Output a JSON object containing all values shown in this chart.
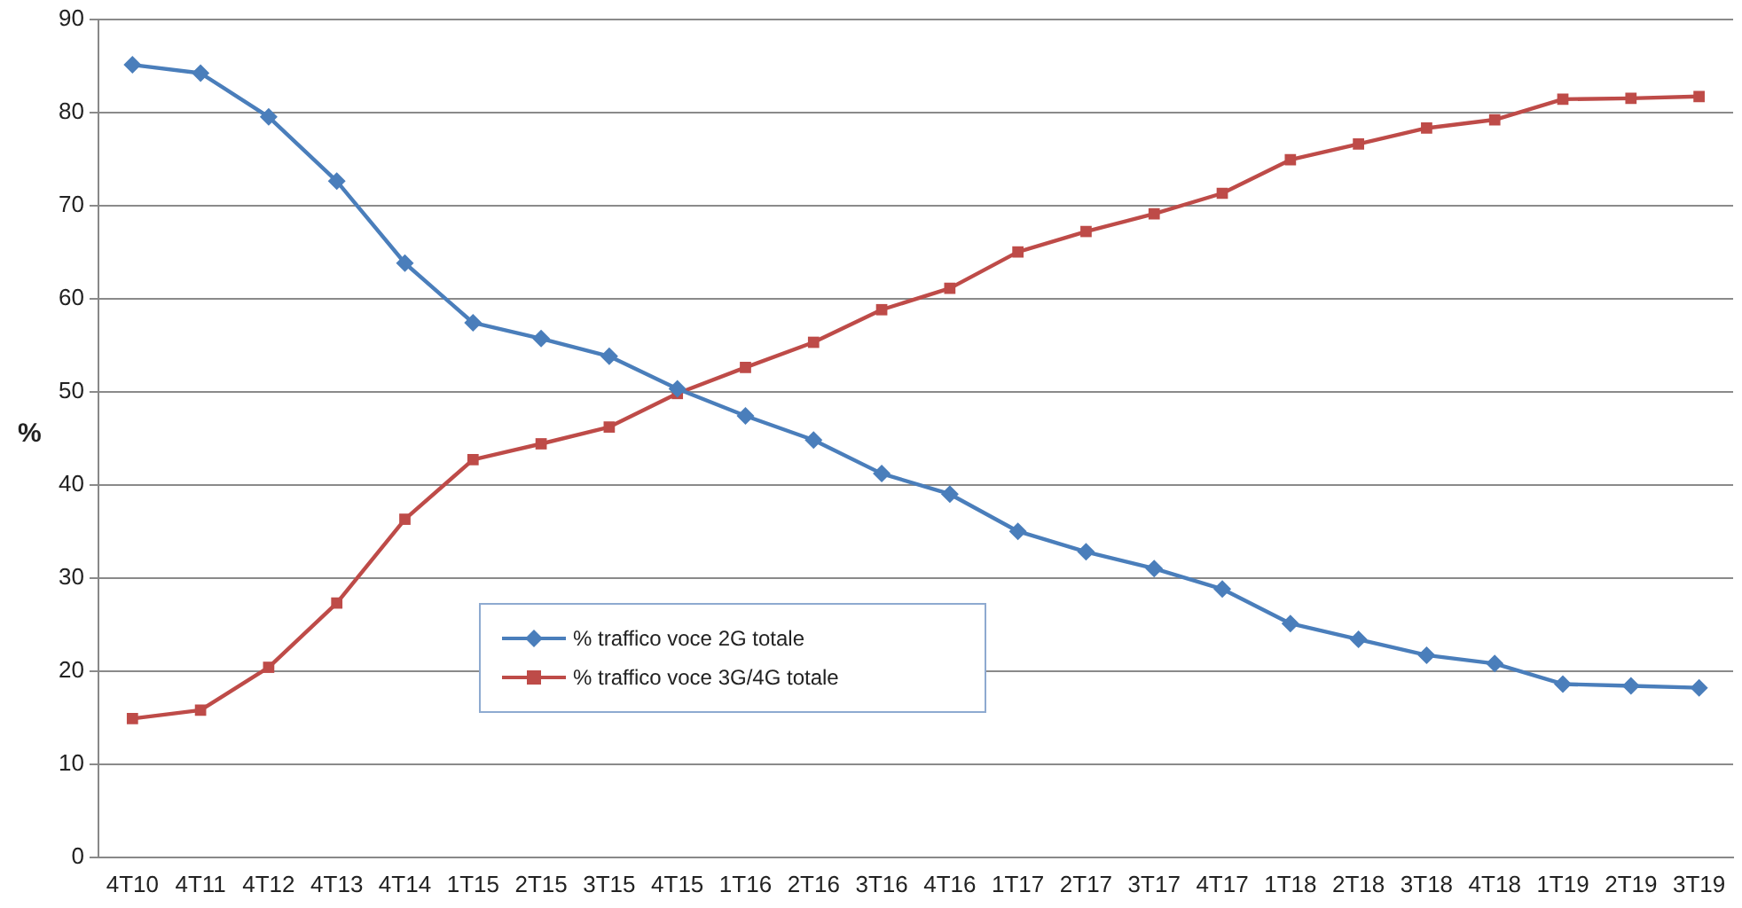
{
  "chart_data": {
    "type": "line",
    "ylabel": "%",
    "categories": [
      "4T10",
      "4T11",
      "4T12",
      "4T13",
      "4T14",
      "1T15",
      "2T15",
      "3T15",
      "4T15",
      "1T16",
      "2T16",
      "3T16",
      "4T16",
      "1T17",
      "2T17",
      "3T17",
      "4T17",
      "1T18",
      "2T18",
      "3T18",
      "4T18",
      "1T19",
      "2T19",
      "3T19"
    ],
    "series": [
      {
        "name": "% traffico voce 2G totale",
        "color": "#4a7ebb",
        "marker": "diamond",
        "values": [
          85.1,
          84.2,
          79.5,
          72.6,
          63.8,
          57.4,
          55.7,
          53.8,
          50.3,
          47.4,
          44.8,
          41.2,
          39.0,
          35.0,
          32.8,
          31.0,
          28.8,
          25.1,
          23.4,
          21.7,
          20.8,
          18.6,
          18.4,
          18.2
        ]
      },
      {
        "name": "% traffico voce 3G/4G totale",
        "color": "#be4b48",
        "marker": "square",
        "values": [
          14.9,
          15.8,
          20.4,
          27.3,
          36.3,
          42.7,
          44.4,
          46.2,
          49.8,
          52.6,
          55.3,
          58.8,
          61.1,
          65.0,
          67.2,
          69.1,
          71.3,
          74.9,
          76.6,
          78.3,
          79.2,
          81.4,
          81.5,
          81.7
        ]
      }
    ],
    "ylim": [
      0,
      90
    ],
    "yticks": [
      0,
      10,
      20,
      30,
      40,
      50,
      60,
      70,
      80,
      90
    ],
    "grid": "y",
    "legend": "bottom left",
    "line_style": "solid"
  }
}
